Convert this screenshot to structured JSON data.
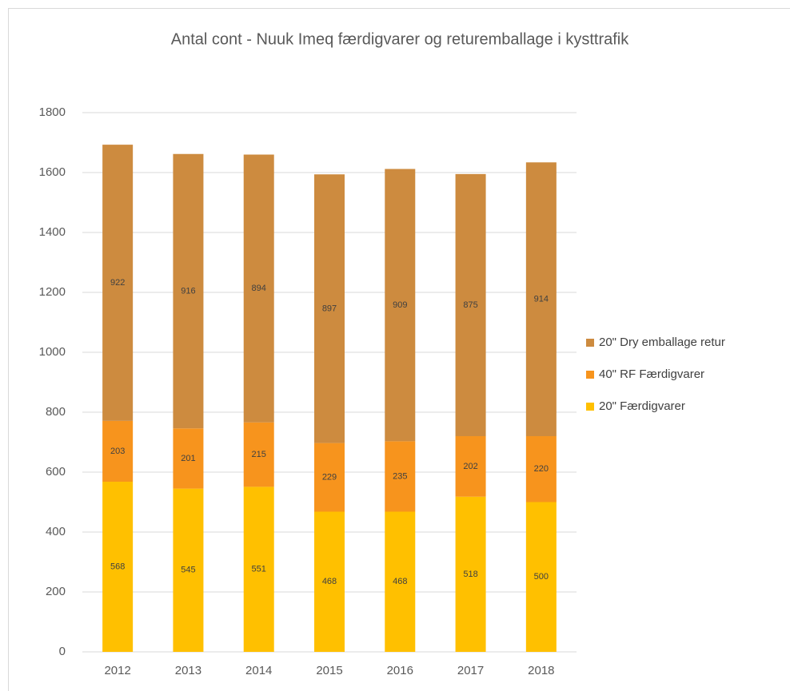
{
  "chart_data": {
    "type": "stacked_bar",
    "title": "Antal cont - Nuuk Imeq  færdigvarer og  returemballage i kysttrafik",
    "categories": [
      "2012",
      "2013",
      "2014",
      "2015",
      "2016",
      "2017",
      "2018"
    ],
    "series": [
      {
        "name": "20\" Færdigvarer",
        "color": "#ffc000",
        "values": [
          568,
          545,
          551,
          468,
          468,
          518,
          500
        ]
      },
      {
        "name": "40\" RF Færdigvarer",
        "color": "#f7941d",
        "values": [
          203,
          201,
          215,
          229,
          235,
          202,
          220
        ]
      },
      {
        "name": "20\" Dry emballage retur",
        "color": "#cd8b3f",
        "values": [
          922,
          916,
          894,
          897,
          909,
          875,
          914
        ]
      }
    ],
    "ylim": [
      0,
      1800
    ],
    "yticks": [
      0,
      200,
      400,
      600,
      800,
      1000,
      1200,
      1400,
      1600,
      1800
    ],
    "grid": true,
    "legend": "right"
  }
}
